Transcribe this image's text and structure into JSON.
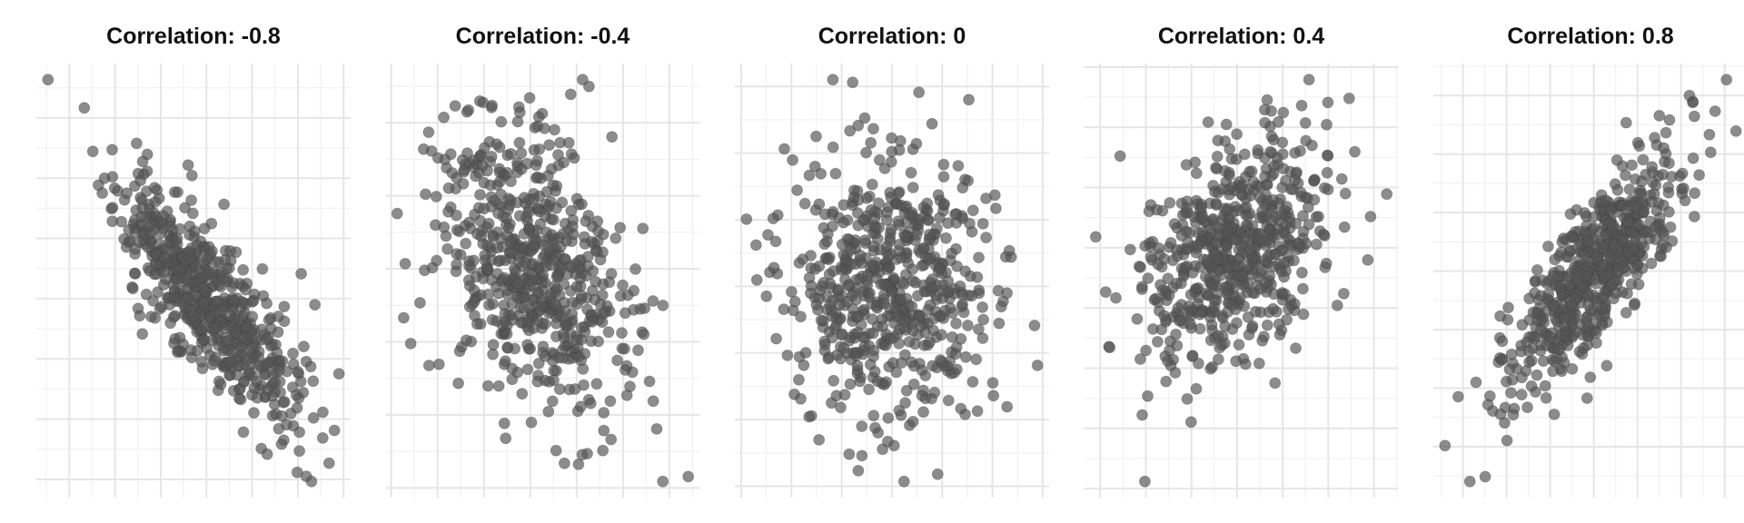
{
  "colors": {
    "point": "#555555",
    "grid_major": "#e6e6e6",
    "grid_minor": "#f1f1f1",
    "background": "#ffffff"
  },
  "chart_data": [
    {
      "type": "scatter",
      "title": "Correlation: -0.8",
      "correlation": -0.8,
      "n_points": 600,
      "seed": 11,
      "grid": true,
      "xlabel": "",
      "ylabel": ""
    },
    {
      "type": "scatter",
      "title": "Correlation: -0.4",
      "correlation": -0.4,
      "n_points": 600,
      "seed": 23,
      "grid": true,
      "xlabel": "",
      "ylabel": ""
    },
    {
      "type": "scatter",
      "title": "Correlation: 0",
      "correlation": 0,
      "n_points": 600,
      "seed": 37,
      "grid": true,
      "xlabel": "",
      "ylabel": ""
    },
    {
      "type": "scatter",
      "title": "Correlation: 0.4",
      "correlation": 0.4,
      "n_points": 600,
      "seed": 41,
      "grid": true,
      "xlabel": "",
      "ylabel": ""
    },
    {
      "type": "scatter",
      "title": "Correlation: 0.8",
      "correlation": 0.8,
      "n_points": 600,
      "seed": 53,
      "grid": true,
      "xlabel": "",
      "ylabel": ""
    }
  ]
}
